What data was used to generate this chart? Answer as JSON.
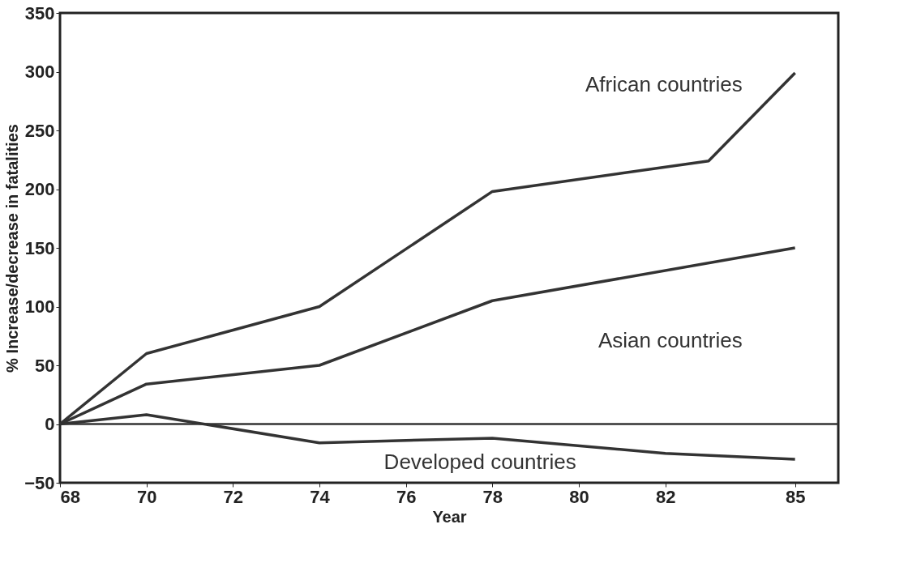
{
  "chart_data": {
    "type": "line",
    "xlabel": "Year",
    "ylabel": "% Increase/decrease in fatalities",
    "xlim": [
      68,
      86
    ],
    "xticks": [
      68,
      70,
      72,
      74,
      76,
      78,
      80,
      82,
      85
    ],
    "ylim": [
      -50,
      350
    ],
    "yticks": [
      -50,
      0,
      50,
      100,
      150,
      200,
      250,
      300,
      350
    ],
    "grid": false,
    "marker": "none",
    "line_style": "solid",
    "ref_lines": [
      {
        "axis": "y",
        "value": 0,
        "color": "#333333"
      }
    ],
    "series": [
      {
        "name": "African countries",
        "color": "#333333",
        "x": [
          68,
          70,
          74,
          78,
          83,
          85
        ],
        "values": [
          0,
          60,
          100,
          198,
          224,
          299
        ]
      },
      {
        "name": "Asian countries",
        "color": "#333333",
        "x": [
          68,
          70,
          74,
          78,
          85
        ],
        "values": [
          0,
          34,
          50,
          105,
          150
        ]
      },
      {
        "name": "Developed countries",
        "color": "#333333",
        "x": [
          68,
          70,
          74,
          78,
          82,
          85
        ],
        "values": [
          0,
          8,
          -16,
          -12,
          -25,
          -30
        ]
      }
    ]
  }
}
